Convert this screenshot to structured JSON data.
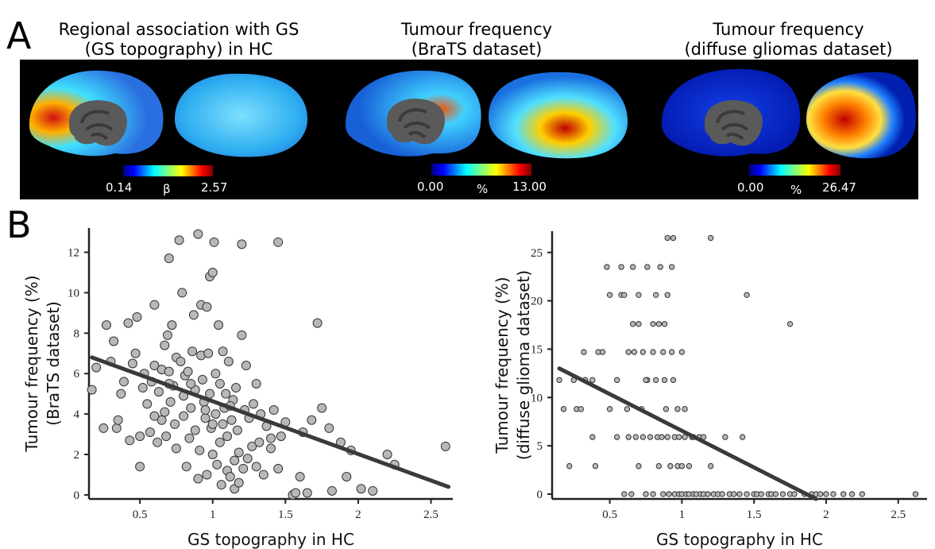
{
  "panel_a": {
    "letter": "A",
    "maps": [
      {
        "title_line1": "Regional association with GS",
        "title_line2": "(GS topography) in HC",
        "colorbar": {
          "min": "0.14",
          "symbol": "β",
          "max": "2.57"
        }
      },
      {
        "title_line1": "Tumour frequency",
        "title_line2": "(BraTS dataset)",
        "colorbar": {
          "min": "0.00",
          "symbol": "%",
          "max": "13.00"
        }
      },
      {
        "title_line1": "Tumour frequency",
        "title_line2": "(diffuse gliomas dataset)",
        "colorbar": {
          "min": "0.00",
          "symbol": "%",
          "max": "26.47"
        }
      }
    ],
    "colormap": [
      "#00007f",
      "#0000ff",
      "#007fff",
      "#00ffff",
      "#7fff7f",
      "#ffff00",
      "#ff7f00",
      "#ff0000",
      "#7f0000"
    ]
  },
  "panel_b": {
    "letter": "B"
  },
  "chart_data": [
    {
      "type": "scatter",
      "xlabel": "GS topography in HC",
      "ylabel_line1": "Tumour frequency (%)",
      "ylabel_line2": "(BraTS dataset)",
      "xlim": [
        0.15,
        2.65
      ],
      "ylim": [
        -0.2,
        13.2
      ],
      "xticks": [
        0.5,
        1,
        1.5,
        2,
        2.5
      ],
      "xtick_labels": [
        "0.5",
        "1",
        "1.5",
        "2",
        "2.5"
      ],
      "yticks": [
        0,
        2,
        4,
        6,
        8,
        10,
        12
      ],
      "ytick_labels": [
        "0",
        "2",
        "4",
        "6",
        "8",
        "10",
        "12"
      ],
      "fit_line": {
        "x": [
          0.17,
          2.62
        ],
        "y": [
          6.8,
          0.4
        ]
      },
      "points": [
        [
          0.17,
          5.2
        ],
        [
          0.2,
          6.3
        ],
        [
          0.25,
          3.3
        ],
        [
          0.27,
          8.4
        ],
        [
          0.3,
          6.6
        ],
        [
          0.32,
          7.6
        ],
        [
          0.34,
          3.3
        ],
        [
          0.35,
          3.7
        ],
        [
          0.37,
          5.0
        ],
        [
          0.39,
          5.6
        ],
        [
          0.42,
          8.5
        ],
        [
          0.43,
          2.7
        ],
        [
          0.45,
          6.5
        ],
        [
          0.47,
          7.0
        ],
        [
          0.48,
          8.8
        ],
        [
          0.5,
          2.9
        ],
        [
          0.5,
          1.4
        ],
        [
          0.52,
          5.3
        ],
        [
          0.53,
          6.0
        ],
        [
          0.55,
          4.5
        ],
        [
          0.57,
          3.1
        ],
        [
          0.58,
          5.6
        ],
        [
          0.6,
          9.4
        ],
        [
          0.6,
          6.4
        ],
        [
          0.62,
          2.6
        ],
        [
          0.63,
          5.1
        ],
        [
          0.65,
          6.2
        ],
        [
          0.65,
          3.7
        ],
        [
          0.67,
          7.4
        ],
        [
          0.67,
          4.1
        ],
        [
          0.68,
          2.9
        ],
        [
          0.69,
          7.9
        ],
        [
          0.7,
          11.7
        ],
        [
          0.7,
          6.1
        ],
        [
          0.71,
          4.6
        ],
        [
          0.72,
          8.4
        ],
        [
          0.73,
          5.4
        ],
        [
          0.74,
          3.5
        ],
        [
          0.75,
          6.8
        ],
        [
          0.75,
          2.3
        ],
        [
          0.77,
          12.6
        ],
        [
          0.78,
          6.6
        ],
        [
          0.79,
          10.0
        ],
        [
          0.8,
          4.9
        ],
        [
          0.8,
          3.9
        ],
        [
          0.81,
          5.9
        ],
        [
          0.82,
          1.4
        ],
        [
          0.83,
          6.1
        ],
        [
          0.84,
          2.8
        ],
        [
          0.85,
          4.3
        ],
        [
          0.86,
          7.1
        ],
        [
          0.87,
          8.9
        ],
        [
          0.88,
          5.2
        ],
        [
          0.88,
          3.2
        ],
        [
          0.9,
          0.8
        ],
        [
          0.9,
          12.9
        ],
        [
          0.91,
          2.2
        ],
        [
          0.92,
          9.4
        ],
        [
          0.92,
          6.9
        ],
        [
          0.93,
          5.7
        ],
        [
          0.94,
          4.6
        ],
        [
          0.95,
          3.8
        ],
        [
          0.96,
          1.0
        ],
        [
          0.96,
          9.3
        ],
        [
          0.97,
          7.0
        ],
        [
          0.98,
          10.8
        ],
        [
          0.98,
          5.0
        ],
        [
          0.99,
          3.3
        ],
        [
          1.0,
          11.0
        ],
        [
          1.0,
          2.0
        ],
        [
          1.01,
          12.5
        ],
        [
          1.02,
          6.0
        ],
        [
          1.02,
          4.0
        ],
        [
          1.03,
          1.5
        ],
        [
          1.04,
          8.4
        ],
        [
          1.05,
          5.5
        ],
        [
          1.05,
          2.6
        ],
        [
          1.06,
          0.5
        ],
        [
          1.07,
          7.1
        ],
        [
          1.07,
          3.5
        ],
        [
          1.08,
          4.3
        ],
        [
          1.09,
          5.0
        ],
        [
          1.1,
          1.2
        ],
        [
          1.1,
          2.9
        ],
        [
          1.11,
          6.6
        ],
        [
          1.12,
          0.9
        ],
        [
          1.13,
          3.7
        ],
        [
          1.14,
          4.7
        ],
        [
          1.15,
          0.3
        ],
        [
          1.15,
          1.7
        ],
        [
          1.16,
          5.3
        ],
        [
          1.17,
          3.2
        ],
        [
          1.18,
          2.1
        ],
        [
          1.2,
          12.4
        ],
        [
          1.2,
          7.9
        ],
        [
          1.21,
          1.3
        ],
        [
          1.22,
          4.2
        ],
        [
          1.23,
          6.4
        ],
        [
          1.24,
          1.8
        ],
        [
          1.25,
          3.8
        ],
        [
          1.27,
          2.4
        ],
        [
          1.28,
          4.5
        ],
        [
          1.3,
          1.4
        ],
        [
          1.3,
          5.5
        ],
        [
          1.32,
          2.6
        ],
        [
          1.33,
          4.0
        ],
        [
          1.35,
          1.0
        ],
        [
          1.37,
          3.4
        ],
        [
          1.4,
          2.3
        ],
        [
          1.42,
          4.2
        ],
        [
          1.45,
          12.5
        ],
        [
          1.45,
          1.3
        ],
        [
          1.47,
          2.9
        ],
        [
          1.5,
          3.6
        ],
        [
          1.55,
          0.0
        ],
        [
          1.57,
          0.1
        ],
        [
          1.6,
          0.9
        ],
        [
          1.62,
          3.1
        ],
        [
          1.65,
          0.1
        ],
        [
          1.68,
          3.7
        ],
        [
          1.72,
          8.5
        ],
        [
          1.75,
          4.3
        ],
        [
          1.8,
          3.3
        ],
        [
          1.82,
          0.2
        ],
        [
          1.88,
          2.6
        ],
        [
          1.92,
          0.9
        ],
        [
          1.95,
          2.2
        ],
        [
          2.02,
          0.3
        ],
        [
          2.1,
          0.2
        ],
        [
          2.2,
          2.0
        ],
        [
          2.25,
          1.5
        ],
        [
          2.6,
          2.4
        ],
        [
          1.4,
          2.8
        ],
        [
          0.95,
          4.2
        ],
        [
          1.0,
          3.5
        ],
        [
          1.12,
          4.4
        ],
        [
          0.85,
          5.5
        ],
        [
          0.6,
          3.9
        ],
        [
          0.7,
          5.5
        ],
        [
          1.18,
          0.6
        ]
      ]
    },
    {
      "type": "scatter",
      "xlabel": "GS topography in HC",
      "ylabel_line1": "Tumour frequency (%)",
      "ylabel_line2": "(diffuse glioma dataset)",
      "xlim": [
        0.1,
        2.7
      ],
      "ylim": [
        -0.5,
        27.2
      ],
      "xticks": [
        0.5,
        1,
        1.5,
        2,
        2.5
      ],
      "xtick_labels": [
        "0.5",
        "1",
        "1.5",
        "2",
        "2.5"
      ],
      "yticks": [
        0,
        5,
        10,
        15,
        20,
        25
      ],
      "ytick_labels": [
        "0",
        "5",
        "10",
        "15",
        "20",
        "25"
      ],
      "fit_line": {
        "x": [
          0.15,
          1.93
        ],
        "y": [
          13.0,
          -0.5
        ]
      },
      "points": [
        [
          0.15,
          11.8
        ],
        [
          0.18,
          8.8
        ],
        [
          0.22,
          2.9
        ],
        [
          0.25,
          11.8
        ],
        [
          0.27,
          8.8
        ],
        [
          0.3,
          8.8
        ],
        [
          0.32,
          14.7
        ],
        [
          0.33,
          11.8
        ],
        [
          0.38,
          5.9
        ],
        [
          0.38,
          11.8
        ],
        [
          0.4,
          2.9
        ],
        [
          0.42,
          14.7
        ],
        [
          0.45,
          14.7
        ],
        [
          0.48,
          23.5
        ],
        [
          0.5,
          20.6
        ],
        [
          0.5,
          8.8
        ],
        [
          0.55,
          5.9
        ],
        [
          0.55,
          11.8
        ],
        [
          0.58,
          23.5
        ],
        [
          0.58,
          20.6
        ],
        [
          0.6,
          20.6
        ],
        [
          0.6,
          0.0
        ],
        [
          0.62,
          8.8
        ],
        [
          0.63,
          14.7
        ],
        [
          0.63,
          5.9
        ],
        [
          0.65,
          0.0
        ],
        [
          0.66,
          17.6
        ],
        [
          0.66,
          23.5
        ],
        [
          0.67,
          14.7
        ],
        [
          0.68,
          5.9
        ],
        [
          0.7,
          20.6
        ],
        [
          0.7,
          17.6
        ],
        [
          0.7,
          2.9
        ],
        [
          0.72,
          8.8
        ],
        [
          0.73,
          14.7
        ],
        [
          0.73,
          5.9
        ],
        [
          0.75,
          0.0
        ],
        [
          0.76,
          23.5
        ],
        [
          0.76,
          11.8
        ],
        [
          0.78,
          5.9
        ],
        [
          0.8,
          17.6
        ],
        [
          0.8,
          14.7
        ],
        [
          0.8,
          0.0
        ],
        [
          0.82,
          20.6
        ],
        [
          0.82,
          11.8
        ],
        [
          0.83,
          5.9
        ],
        [
          0.84,
          17.6
        ],
        [
          0.84,
          2.9
        ],
        [
          0.85,
          23.5
        ],
        [
          0.86,
          5.9
        ],
        [
          0.87,
          14.7
        ],
        [
          0.87,
          0.0
        ],
        [
          0.88,
          17.6
        ],
        [
          0.88,
          11.8
        ],
        [
          0.89,
          8.8
        ],
        [
          0.9,
          26.5
        ],
        [
          0.9,
          20.6
        ],
        [
          0.9,
          5.9
        ],
        [
          0.91,
          0.0
        ],
        [
          0.92,
          2.9
        ],
        [
          0.93,
          23.5
        ],
        [
          0.93,
          14.7
        ],
        [
          0.94,
          26.5
        ],
        [
          0.94,
          11.8
        ],
        [
          0.95,
          5.9
        ],
        [
          0.95,
          0.0
        ],
        [
          0.97,
          8.8
        ],
        [
          0.97,
          2.9
        ],
        [
          0.98,
          5.9
        ],
        [
          0.98,
          0.0
        ],
        [
          1.0,
          2.9
        ],
        [
          1.0,
          0.0
        ],
        [
          1.02,
          8.8
        ],
        [
          1.02,
          5.9
        ],
        [
          1.03,
          0.0
        ],
        [
          1.05,
          2.9
        ],
        [
          1.05,
          0.0
        ],
        [
          1.07,
          5.9
        ],
        [
          1.08,
          0.0
        ],
        [
          1.1,
          0.0
        ],
        [
          1.12,
          5.9
        ],
        [
          1.13,
          0.0
        ],
        [
          1.15,
          0.0
        ],
        [
          1.18,
          0.0
        ],
        [
          1.2,
          26.5
        ],
        [
          1.2,
          2.9
        ],
        [
          1.22,
          0.0
        ],
        [
          1.25,
          0.0
        ],
        [
          1.28,
          0.0
        ],
        [
          1.3,
          5.9
        ],
        [
          1.33,
          0.0
        ],
        [
          1.36,
          0.0
        ],
        [
          1.4,
          0.0
        ],
        [
          1.42,
          5.9
        ],
        [
          1.45,
          20.6
        ],
        [
          1.45,
          0.0
        ],
        [
          1.5,
          0.0
        ],
        [
          1.52,
          0.0
        ],
        [
          1.55,
          0.0
        ],
        [
          1.6,
          0.0
        ],
        [
          1.62,
          0.0
        ],
        [
          1.65,
          0.0
        ],
        [
          1.7,
          0.0
        ],
        [
          1.75,
          17.6
        ],
        [
          1.75,
          0.0
        ],
        [
          1.78,
          0.0
        ],
        [
          1.85,
          0.0
        ],
        [
          1.9,
          0.0
        ],
        [
          1.93,
          0.0
        ],
        [
          1.96,
          0.0
        ],
        [
          2.0,
          0.0
        ],
        [
          2.05,
          0.0
        ],
        [
          2.12,
          0.0
        ],
        [
          2.18,
          0.0
        ],
        [
          2.25,
          0.0
        ],
        [
          2.62,
          0.0
        ],
        [
          1.0,
          14.7
        ],
        [
          0.75,
          11.8
        ],
        [
          1.08,
          5.9
        ],
        [
          1.15,
          5.9
        ]
      ]
    }
  ]
}
